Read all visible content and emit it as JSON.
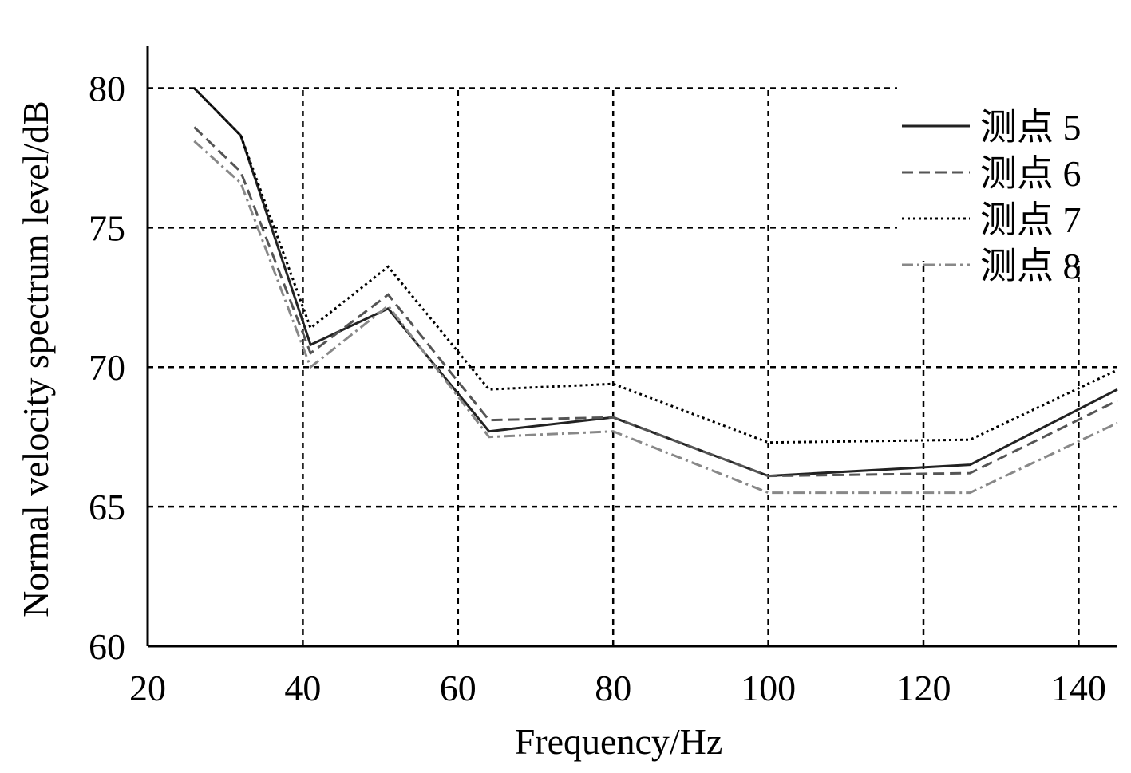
{
  "chart_data": {
    "type": "line",
    "xlabel": "Frequency/Hz",
    "ylabel": "Normal velocity spectrum level/dB",
    "xlim": [
      20,
      145
    ],
    "ylim": [
      60,
      81.5
    ],
    "x_ticks": [
      20,
      40,
      60,
      80,
      100,
      120,
      140
    ],
    "y_ticks": [
      60,
      65,
      70,
      75,
      80
    ],
    "grid": true,
    "legend_position": "top-right",
    "series": [
      {
        "name": "测点 5",
        "style": "solid",
        "color": "#222222",
        "x": [
          26,
          32,
          41,
          51,
          64,
          80,
          100,
          126,
          145
        ],
        "y": [
          80.0,
          78.3,
          70.8,
          72.1,
          67.7,
          68.2,
          66.1,
          66.5,
          69.2
        ]
      },
      {
        "name": "测点 6",
        "style": "dashed",
        "color": "#555555",
        "x": [
          26,
          32,
          41,
          51,
          64,
          80,
          100,
          126,
          145
        ],
        "y": [
          78.6,
          77.0,
          70.5,
          72.6,
          68.1,
          68.2,
          66.1,
          66.2,
          68.8
        ]
      },
      {
        "name": "测点 7",
        "style": "dotted",
        "color": "#000000",
        "x": [
          26,
          32,
          41,
          51,
          64,
          80,
          100,
          126,
          145
        ],
        "y": [
          80.0,
          78.3,
          71.4,
          73.6,
          69.2,
          69.4,
          67.3,
          67.4,
          69.9
        ]
      },
      {
        "name": "测点 8",
        "style": "dashdot",
        "color": "#888888",
        "x": [
          26,
          32,
          41,
          51,
          64,
          80,
          100,
          126,
          145
        ],
        "y": [
          78.1,
          76.6,
          70.0,
          72.2,
          67.5,
          67.7,
          65.5,
          65.5,
          68.0
        ]
      }
    ]
  }
}
